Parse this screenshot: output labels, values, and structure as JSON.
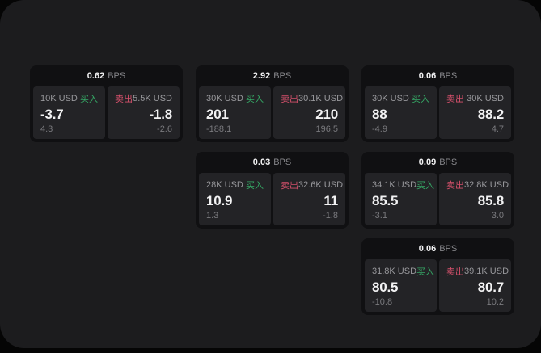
{
  "theme": {
    "page_bg": "#050505",
    "panel_bg": "#1c1c1e",
    "card_bg": "#101012",
    "tile_bg": "#232326",
    "text_primary": "#f2f2f3",
    "text_muted": "#98989c",
    "text_dim": "#7a7a7e",
    "buy_color": "#35a865",
    "sell_color": "#d4506b"
  },
  "labels": {
    "bps_unit": "BPS",
    "buy": "买入",
    "sell": "卖出"
  },
  "cards": [
    {
      "bps": "0.62",
      "buy": {
        "size": "10K USD",
        "price": "-3.7",
        "delta": "4.3"
      },
      "sell": {
        "size": "5.5K USD",
        "price": "-1.8",
        "delta": "-2.6"
      }
    },
    {
      "bps": "2.92",
      "buy": {
        "size": "30K USD",
        "price": "201",
        "delta": "-188.1"
      },
      "sell": {
        "size": "30.1K USD",
        "price": "210",
        "delta": "196.5"
      }
    },
    {
      "bps": "0.06",
      "buy": {
        "size": "30K USD",
        "price": "88",
        "delta": "-4.9"
      },
      "sell": {
        "size": "30K USD",
        "price": "88.2",
        "delta": "4.7"
      }
    },
    {
      "bps": "0.03",
      "buy": {
        "size": "28K USD",
        "price": "10.9",
        "delta": "1.3"
      },
      "sell": {
        "size": "32.6K USD",
        "price": "11",
        "delta": "-1.8"
      }
    },
    {
      "bps": "0.09",
      "buy": {
        "size": "34.1K USD",
        "price": "85.5",
        "delta": "-3.1"
      },
      "sell": {
        "size": "32.8K USD",
        "price": "85.8",
        "delta": "3.0"
      }
    },
    {
      "bps": "0.06",
      "buy": {
        "size": "31.8K USD",
        "price": "80.5",
        "delta": "-10.8"
      },
      "sell": {
        "size": "39.1K USD",
        "price": "80.7",
        "delta": "10.2"
      }
    }
  ]
}
